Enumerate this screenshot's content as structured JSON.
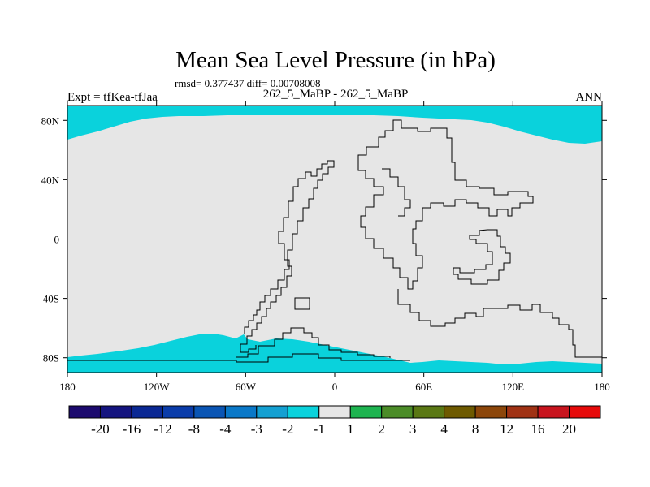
{
  "chart_data": {
    "type": "heatmap",
    "title": "Mean Sea Level Pressure (in hPa)",
    "stats_text": "rmsd= 0.377437 diff= 0.00708008",
    "left_label": "Expt = tfKea-tfJaa",
    "center_label": "262_5_MaBP - 262_5_MaBP",
    "right_label": "ANN",
    "x_ticks": [
      "180",
      "120W",
      "60W",
      "0",
      "60E",
      "120E",
      "180"
    ],
    "x_tick_values": [
      -180,
      -120,
      -60,
      0,
      60,
      120,
      180
    ],
    "y_ticks": [
      "80N",
      "40N",
      "0",
      "40S",
      "80S"
    ],
    "y_tick_values": [
      80,
      40,
      0,
      -40,
      -80
    ],
    "xlim": [
      -180,
      180
    ],
    "ylim": [
      -90,
      90
    ],
    "colorbar": {
      "labels": [
        "-20",
        "-16",
        "-12",
        "-8",
        "-4",
        "-3",
        "-2",
        "-1",
        "1",
        "2",
        "3",
        "4",
        "8",
        "12",
        "16",
        "20"
      ],
      "colors": [
        "#1c0a6e",
        "#14147f",
        "#0a2894",
        "#0a3caa",
        "#0a55b4",
        "#0a78c8",
        "#14a0d2",
        "#0ad2dc",
        "#e6e6e6",
        "#1eb450",
        "#4b8c28",
        "#5a7814",
        "#6e5a00",
        "#8c460a",
        "#a03214",
        "#c8141e",
        "#e60a0a"
      ]
    },
    "field": {
      "background_color": "#e6e6e6",
      "anomaly_color": "#0ad2dc",
      "regions": [
        {
          "band": "-1 to -2",
          "area": "north polar",
          "approx_lat_min": 65,
          "approx_lat_max": 90
        },
        {
          "band": "-1 to -2",
          "area": "south polar",
          "approx_lat_min": -90,
          "approx_lat_max": -65
        }
      ]
    }
  }
}
